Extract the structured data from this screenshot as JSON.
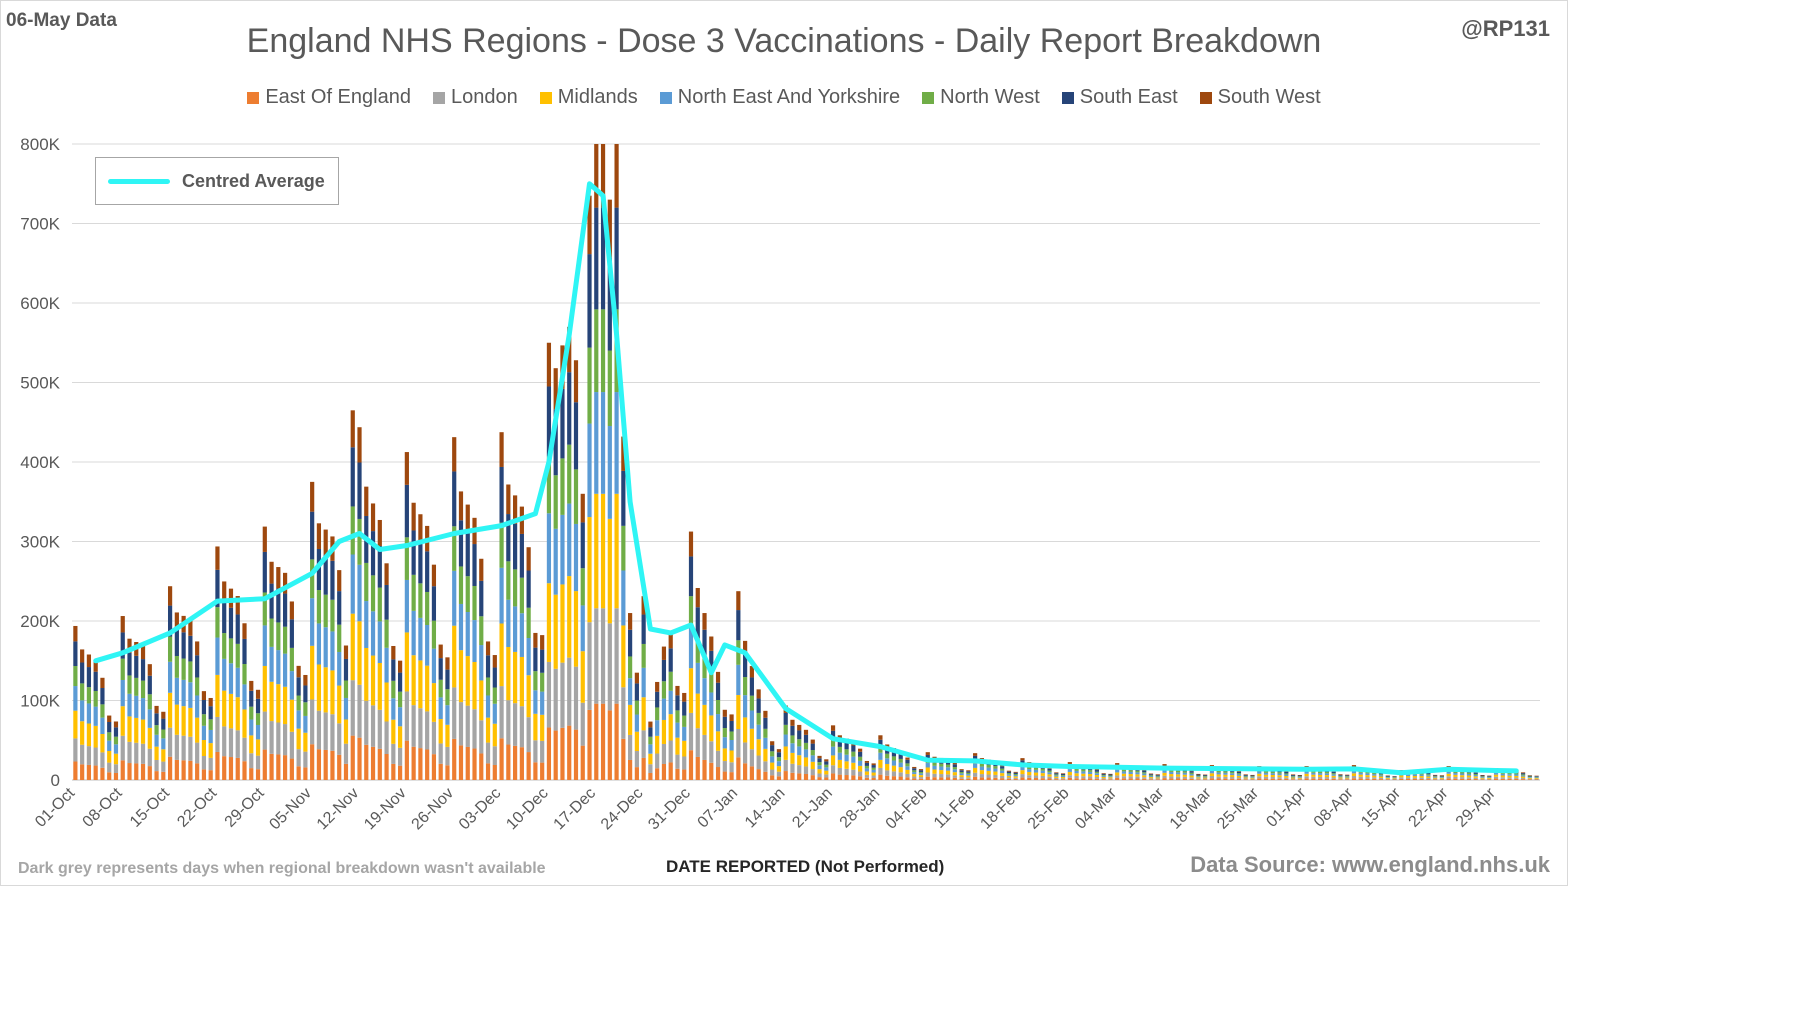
{
  "header": {
    "data_date": "06-May Data",
    "handle": "@RP131"
  },
  "footer": {
    "note": "Dark grey represents days when regional breakdown wasn't available",
    "source": "Data Source: www.england.nhs.uk"
  },
  "chart_data": {
    "type": "bar",
    "stacked": true,
    "title": "England NHS Regions - Dose 3 Vaccinations - Daily Report Breakdown",
    "xlabel": "DATE REPORTED (Not Performed)",
    "ylabel": "",
    "ylim": [
      0,
      800000
    ],
    "yticks": [
      0,
      100000,
      200000,
      300000,
      400000,
      500000,
      600000,
      700000,
      800000
    ],
    "ytick_labels": [
      "0",
      "100K",
      "200K",
      "300K",
      "400K",
      "500K",
      "600K",
      "700K",
      "800K"
    ],
    "x_start": "2021-10-01",
    "x_end": "2022-05-05",
    "xtick_labels": [
      "01-Oct",
      "08-Oct",
      "15-Oct",
      "22-Oct",
      "29-Oct",
      "05-Nov",
      "12-Nov",
      "19-Nov",
      "26-Nov",
      "03-Dec",
      "10-Dec",
      "17-Dec",
      "24-Dec",
      "31-Dec",
      "07-Jan",
      "14-Jan",
      "21-Jan",
      "28-Jan",
      "04-Feb",
      "11-Feb",
      "18-Feb",
      "25-Feb",
      "04-Mar",
      "11-Mar",
      "18-Mar",
      "25-Mar",
      "01-Apr",
      "08-Apr",
      "15-Apr",
      "22-Apr",
      "29-Apr"
    ],
    "grid": true,
    "legend_position": "top",
    "series": [
      {
        "name": "East Of England",
        "color": "#ed7d31",
        "share": 0.12
      },
      {
        "name": "London",
        "color": "#a5a5a5",
        "share": 0.15
      },
      {
        "name": "Midlands",
        "color": "#ffc000",
        "share": 0.18
      },
      {
        "name": "North East And Yorkshire",
        "color": "#5b9bd5",
        "share": 0.16
      },
      {
        "name": "North West",
        "color": "#70ad47",
        "share": 0.13
      },
      {
        "name": "South East",
        "color": "#264478",
        "share": 0.16
      },
      {
        "name": "South West",
        "color": "#9e480e",
        "share": 0.1
      }
    ],
    "weekday_factors": [
      1.25,
      1.05,
      1.0,
      0.95,
      0.8,
      0.5,
      0.45
    ],
    "daily_total_anchors": [
      [
        "2021-10-01",
        155000
      ],
      [
        "2021-10-08",
        165000
      ],
      [
        "2021-10-15",
        195000
      ],
      [
        "2021-10-22",
        235000
      ],
      [
        "2021-10-29",
        255000
      ],
      [
        "2021-11-05",
        300000
      ],
      [
        "2021-11-09",
        330000
      ],
      [
        "2021-11-12",
        355000
      ],
      [
        "2021-11-19",
        330000
      ],
      [
        "2021-11-26",
        345000
      ],
      [
        "2021-12-03",
        350000
      ],
      [
        "2021-12-08",
        370000
      ],
      [
        "2021-12-10",
        440000
      ],
      [
        "2021-12-13",
        600000
      ],
      [
        "2021-12-15",
        720000
      ],
      [
        "2021-12-17",
        780000
      ],
      [
        "2021-12-19",
        730000
      ],
      [
        "2021-12-21",
        540000
      ],
      [
        "2021-12-23",
        300000
      ],
      [
        "2021-12-25",
        70000
      ],
      [
        "2021-12-28",
        230000
      ],
      [
        "2021-12-31",
        250000
      ],
      [
        "2022-01-04",
        170000
      ],
      [
        "2022-01-07",
        190000
      ],
      [
        "2022-01-10",
        120000
      ],
      [
        "2022-01-14",
        75000
      ],
      [
        "2022-01-21",
        55000
      ],
      [
        "2022-01-28",
        45000
      ],
      [
        "2022-02-04",
        28000
      ],
      [
        "2022-02-11",
        27000
      ],
      [
        "2022-02-18",
        22000
      ],
      [
        "2022-02-25",
        18000
      ],
      [
        "2022-03-04",
        17000
      ],
      [
        "2022-03-11",
        16000
      ],
      [
        "2022-03-18",
        15000
      ],
      [
        "2022-03-25",
        14000
      ],
      [
        "2022-04-01",
        14000
      ],
      [
        "2022-04-08",
        15000
      ],
      [
        "2022-04-15",
        10000
      ],
      [
        "2022-04-22",
        14000
      ],
      [
        "2022-04-29",
        12000
      ],
      [
        "2022-05-05",
        12000
      ]
    ],
    "peak_labels": [
      [
        "2021-11-11",
        465000
      ],
      [
        "2021-12-18",
        800000
      ],
      [
        "2021-12-20",
        800000
      ],
      [
        "2021-12-16",
        735000
      ]
    ],
    "centred_average": {
      "name": "Centred Average",
      "color": "#2ff5f5",
      "points": [
        [
          "2021-10-04",
          150000
        ],
        [
          "2021-10-08",
          160000
        ],
        [
          "2021-10-15",
          185000
        ],
        [
          "2021-10-22",
          225000
        ],
        [
          "2021-10-29",
          228000
        ],
        [
          "2021-11-05",
          260000
        ],
        [
          "2021-11-09",
          300000
        ],
        [
          "2021-11-12",
          310000
        ],
        [
          "2021-11-15",
          290000
        ],
        [
          "2021-11-19",
          295000
        ],
        [
          "2021-11-26",
          310000
        ],
        [
          "2021-12-03",
          320000
        ],
        [
          "2021-12-08",
          335000
        ],
        [
          "2021-12-10",
          400000
        ],
        [
          "2021-12-13",
          560000
        ],
        [
          "2021-12-16",
          750000
        ],
        [
          "2021-12-18",
          735000
        ],
        [
          "2021-12-20",
          560000
        ],
        [
          "2021-12-22",
          350000
        ],
        [
          "2021-12-25",
          190000
        ],
        [
          "2021-12-28",
          185000
        ],
        [
          "2021-12-31",
          195000
        ],
        [
          "2022-01-03",
          135000
        ],
        [
          "2022-01-05",
          170000
        ],
        [
          "2022-01-08",
          160000
        ],
        [
          "2022-01-14",
          90000
        ],
        [
          "2022-01-21",
          52000
        ],
        [
          "2022-01-28",
          42000
        ],
        [
          "2022-02-04",
          25000
        ],
        [
          "2022-02-11",
          24000
        ],
        [
          "2022-02-18",
          19000
        ],
        [
          "2022-02-25",
          17000
        ],
        [
          "2022-03-04",
          16000
        ],
        [
          "2022-03-11",
          15000
        ],
        [
          "2022-03-18",
          14500
        ],
        [
          "2022-03-25",
          14000
        ],
        [
          "2022-04-01",
          13500
        ],
        [
          "2022-04-08",
          14000
        ],
        [
          "2022-04-15",
          9000
        ],
        [
          "2022-04-22",
          13500
        ],
        [
          "2022-04-29",
          12000
        ],
        [
          "2022-05-02",
          11500
        ]
      ]
    }
  }
}
